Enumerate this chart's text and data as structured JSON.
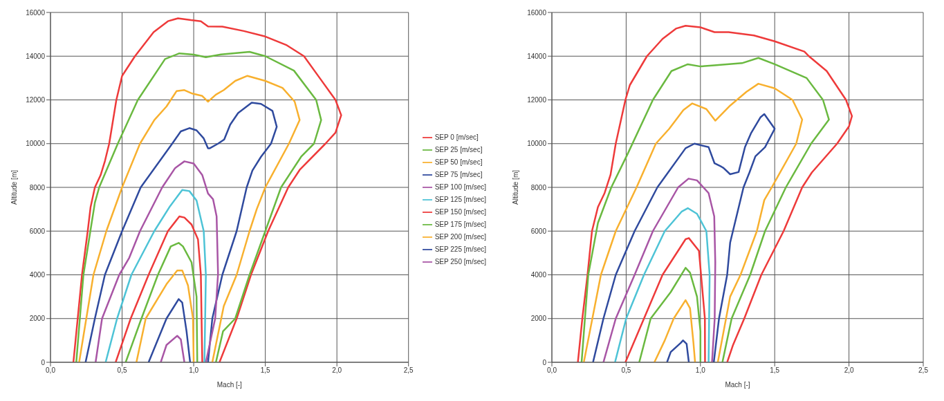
{
  "chart_data": [
    {
      "type": "line",
      "xlabel": "Mach [-]",
      "ylabel": "Altitude [m]",
      "xlim": [
        0,
        2.5
      ],
      "xticks": [
        {
          "value": 0,
          "label": "0,0"
        },
        {
          "value": 0.5,
          "label": "0,5"
        },
        {
          "value": 1,
          "label": "1,0"
        },
        {
          "value": 1.5,
          "label": "1,5"
        },
        {
          "value": 2,
          "label": "2,0"
        },
        {
          "value": 2.5,
          "label": "2,5"
        }
      ],
      "ylim": [
        0,
        16000
      ],
      "yticks": [
        0,
        2000,
        4000,
        6000,
        8000,
        10000,
        12000,
        14000,
        16000
      ],
      "grid": true,
      "legend": "right",
      "marker": "none",
      "line_style": "solid",
      "series": [
        {
          "name": "SEP 0 [m/sec]",
          "color": "#ee3a3a",
          "x": [
            0.16,
            0.22,
            0.26,
            0.28,
            0.31,
            0.35,
            0.38,
            0.41,
            0.46,
            0.5,
            0.59,
            0.72,
            0.82,
            0.89,
            0.98,
            1.05,
            1.1,
            1.2,
            1.35,
            1.5,
            1.65,
            1.77,
            1.88,
            1.99,
            2.03,
            1.99,
            1.92,
            1.74,
            1.66,
            1.52,
            1.4,
            1.3,
            1.18
          ],
          "values": [
            0,
            4000,
            6000,
            7100,
            8000,
            8560,
            9200,
            10000,
            12000,
            13100,
            14000,
            15100,
            15600,
            15730,
            15650,
            15600,
            15360,
            15350,
            15150,
            14900,
            14500,
            14000,
            13000,
            12000,
            11300,
            10500,
            10000,
            8800,
            8000,
            6000,
            4000,
            2000,
            0
          ]
        },
        {
          "name": "SEP 25 [m/sec]",
          "color": "#6ab940",
          "x": [
            0.18,
            0.23,
            0.31,
            0.34,
            0.47,
            0.61,
            0.8,
            0.9,
            1.0,
            1.085,
            1.19,
            1.39,
            1.5,
            1.7,
            1.855,
            1.89,
            1.84,
            1.75,
            1.61,
            1.5,
            1.39,
            1.29,
            1.205,
            1.155
          ],
          "values": [
            0,
            4000,
            7300,
            8000,
            10000,
            12000,
            13870,
            14130,
            14070,
            13950,
            14080,
            14200,
            14000,
            13340,
            12000,
            11080,
            10000,
            9400,
            8000,
            6000,
            4000,
            2000,
            1420,
            0
          ]
        },
        {
          "name": "SEP 50 [m/sec]",
          "color": "#f8b02e",
          "x": [
            0.2,
            0.3,
            0.39,
            0.5,
            0.625,
            0.725,
            0.81,
            0.88,
            0.935,
            0.99,
            1.06,
            1.1,
            1.155,
            1.21,
            1.29,
            1.375,
            1.5,
            1.62,
            1.705,
            1.74,
            1.665,
            1.5,
            1.44,
            1.39,
            1.3,
            1.21,
            1.13
          ],
          "values": [
            0,
            4000,
            6000,
            8000,
            10000,
            11080,
            11700,
            12400,
            12450,
            12290,
            12180,
            11920,
            12240,
            12450,
            12870,
            13100,
            12870,
            12550,
            11920,
            11080,
            10000,
            8000,
            7000,
            6000,
            4000,
            2570,
            0
          ]
        },
        {
          "name": "SEP 75 [m/sec]",
          "color": "#2f4a9e",
          "x": [
            0.245,
            0.31,
            0.38,
            0.5,
            0.63,
            0.85,
            0.91,
            0.97,
            1.02,
            1.07,
            1.1,
            1.113,
            1.17,
            1.213,
            1.255,
            1.31,
            1.405,
            1.47,
            1.55,
            1.58,
            1.54,
            1.47,
            1.41,
            1.37,
            1.3,
            1.2,
            1.13,
            1.1
          ],
          "values": [
            0,
            2000,
            4000,
            6000,
            8000,
            10000,
            10560,
            10710,
            10610,
            10240,
            9790,
            9790,
            10000,
            10190,
            10870,
            11400,
            11870,
            11820,
            11500,
            10770,
            10000,
            9400,
            8770,
            8000,
            6000,
            4000,
            2000,
            0
          ]
        },
        {
          "name": "SEP 100 [m/sec]",
          "color": "#a855a5",
          "x": [
            0.315,
            0.36,
            0.48,
            0.55,
            0.625,
            0.78,
            0.87,
            0.935,
            1.0,
            1.06,
            1.1,
            1.135,
            1.16,
            1.17,
            1.15,
            1.085
          ],
          "values": [
            0,
            2000,
            4000,
            4780,
            6000,
            8000,
            8880,
            9190,
            9090,
            8560,
            7720,
            7460,
            6670,
            4040,
            2000,
            0
          ]
        },
        {
          "name": "SEP 125 [m/sec]",
          "color": "#4dc3d6",
          "x": [
            0.385,
            0.465,
            0.565,
            0.725,
            0.835,
            0.92,
            0.97,
            1.02,
            1.07,
            1.085,
            1.075
          ],
          "values": [
            0,
            2000,
            4000,
            6000,
            7140,
            7880,
            7830,
            7400,
            6000,
            4000,
            0
          ]
        },
        {
          "name": "SEP 150 [m/sec]",
          "color": "#ee3a3a",
          "x": [
            0.455,
            0.56,
            0.685,
            0.82,
            0.9,
            0.935,
            0.985,
            1.03,
            1.05,
            1.06
          ],
          "values": [
            0,
            2000,
            4000,
            6000,
            6670,
            6620,
            6300,
            5620,
            4000,
            0
          ]
        },
        {
          "name": "SEP 175 [m/sec]",
          "color": "#6ab940",
          "x": [
            0.525,
            0.635,
            0.75,
            0.84,
            0.895,
            0.925,
            0.985,
            1.02,
            1.025
          ],
          "values": [
            0,
            2000,
            4000,
            5300,
            5460,
            5300,
            4570,
            3000,
            0
          ]
        },
        {
          "name": "SEP 200 [m/sec]",
          "color": "#f8b02e",
          "x": [
            0.6,
            0.665,
            0.81,
            0.885,
            0.92,
            0.96,
            0.995,
            1.0
          ],
          "values": [
            0,
            2000,
            3570,
            4200,
            4200,
            3520,
            2000,
            0
          ]
        },
        {
          "name": "SEP 225 [m/sec]",
          "color": "#2f4a9e",
          "x": [
            0.685,
            0.81,
            0.895,
            0.92,
            0.95,
            0.975
          ],
          "values": [
            0,
            2000,
            2890,
            2730,
            1420,
            0
          ]
        },
        {
          "name": "SEP 250 [m/sec]",
          "color": "#a855a5",
          "x": [
            0.77,
            0.81,
            0.885,
            0.91,
            0.935
          ],
          "values": [
            0,
            790,
            1210,
            1050,
            0
          ]
        }
      ]
    },
    {
      "type": "line",
      "xlabel": "Mach [-]",
      "ylabel": "Altitude [m]",
      "xlim": [
        0,
        2.5
      ],
      "xticks": [
        {
          "value": 0,
          "label": "0,0"
        },
        {
          "value": 0.5,
          "label": "0,5"
        },
        {
          "value": 1,
          "label": "1,0"
        },
        {
          "value": 1.5,
          "label": "1,5"
        },
        {
          "value": 2,
          "label": "2,0"
        },
        {
          "value": 2.5,
          "label": "2,5"
        }
      ],
      "ylim": [
        0,
        16000
      ],
      "yticks": [
        0,
        2000,
        4000,
        6000,
        8000,
        10000,
        12000,
        14000,
        16000
      ],
      "grid": true,
      "marker": "none",
      "line_style": "solid",
      "series": [
        {
          "color": "#ee3a3a",
          "x": [
            0.175,
            0.205,
            0.24,
            0.27,
            0.31,
            0.355,
            0.395,
            0.43,
            0.495,
            0.525,
            0.64,
            0.745,
            0.835,
            0.9,
            1.0,
            1.095,
            1.19,
            1.36,
            1.5,
            1.7,
            1.73,
            1.85,
            1.98,
            2.02,
            2.0,
            1.92,
            1.75,
            1.685,
            1.56,
            1.41,
            1.295,
            1.22,
            1.18
          ],
          "values": [
            0,
            2000,
            4000,
            6000,
            7100,
            7740,
            8580,
            10000,
            12000,
            12680,
            14000,
            14790,
            15260,
            15390,
            15320,
            15100,
            15100,
            14950,
            14680,
            14210,
            14000,
            13320,
            12000,
            11260,
            10790,
            10000,
            8680,
            8000,
            6000,
            4000,
            2000,
            800,
            0
          ]
        },
        {
          "color": "#6ab940",
          "x": [
            0.2,
            0.245,
            0.31,
            0.4,
            0.51,
            0.68,
            0.805,
            0.915,
            1.0,
            1.093,
            1.28,
            1.39,
            1.5,
            1.715,
            1.825,
            1.865,
            1.745,
            1.575,
            1.435,
            1.335,
            1.21,
            1.148
          ],
          "values": [
            0,
            4000,
            6370,
            8000,
            9530,
            12000,
            13320,
            13630,
            13530,
            13580,
            13680,
            13920,
            13630,
            13000,
            12000,
            11100,
            10000,
            8000,
            6000,
            4000,
            2000,
            0
          ]
        },
        {
          "color": "#f8b02e",
          "x": [
            0.215,
            0.33,
            0.43,
            0.57,
            0.7,
            0.79,
            0.885,
            0.945,
            1.04,
            1.1,
            1.2,
            1.31,
            1.39,
            1.5,
            1.62,
            1.685,
            1.645,
            1.48,
            1.43,
            1.38,
            1.27,
            1.2,
            1.117
          ],
          "values": [
            0,
            4000,
            6000,
            8000,
            10000,
            10680,
            11530,
            11840,
            11580,
            11050,
            11740,
            12370,
            12740,
            12530,
            12000,
            11100,
            10000,
            8000,
            7420,
            6000,
            4000,
            3000,
            0
          ]
        },
        {
          "color": "#2f4a9e",
          "x": [
            0.277,
            0.347,
            0.43,
            0.557,
            0.71,
            0.9,
            0.96,
            1.055,
            1.095,
            1.14,
            1.155,
            1.2,
            1.257,
            1.3,
            1.34,
            1.405,
            1.43,
            1.5,
            1.435,
            1.37,
            1.33,
            1.29,
            1.2,
            1.18,
            1.125,
            1.09
          ],
          "values": [
            0,
            2000,
            4000,
            6000,
            8000,
            9790,
            10000,
            9840,
            9100,
            8950,
            8890,
            8600,
            8700,
            9840,
            10470,
            11210,
            11350,
            10680,
            9840,
            9420,
            8680,
            8000,
            5470,
            4000,
            2000,
            0
          ]
        },
        {
          "color": "#a855a5",
          "x": [
            0.347,
            0.43,
            0.557,
            0.68,
            0.85,
            0.92,
            0.977,
            1.055,
            1.093,
            1.1,
            1.096,
            1.078
          ],
          "values": [
            0,
            2000,
            4000,
            6000,
            8000,
            8400,
            8320,
            7740,
            6670,
            4580,
            2000,
            0
          ]
        },
        {
          "color": "#4dc3d6",
          "x": [
            0.425,
            0.5,
            0.62,
            0.76,
            0.875,
            0.915,
            0.977,
            1.04,
            1.062,
            1.055
          ],
          "values": [
            0,
            2000,
            4000,
            6000,
            6900,
            7050,
            6790,
            6000,
            4000,
            0
          ]
        },
        {
          "color": "#ee3a3a",
          "x": [
            0.495,
            0.62,
            0.745,
            0.9,
            0.922,
            0.99,
            1.03,
            1.031
          ],
          "values": [
            0,
            2000,
            4000,
            5630,
            5680,
            5100,
            2000,
            0
          ]
        },
        {
          "color": "#6ab940",
          "x": [
            0.588,
            0.665,
            0.8,
            0.9,
            0.93,
            0.977,
            1.0,
            1.0
          ],
          "values": [
            0,
            2000,
            3210,
            4320,
            4100,
            3000,
            1420,
            0
          ]
        },
        {
          "color": "#f8b02e",
          "x": [
            0.69,
            0.76,
            0.82,
            0.9,
            0.93,
            0.953,
            0.964
          ],
          "values": [
            0,
            1000,
            2000,
            2840,
            2470,
            890,
            0
          ]
        },
        {
          "color": "#2f4a9e",
          "x": [
            0.775,
            0.8,
            0.868,
            0.883,
            0.907,
            0.922
          ],
          "values": [
            0,
            470,
            890,
            1000,
            840,
            0
          ]
        }
      ]
    }
  ]
}
